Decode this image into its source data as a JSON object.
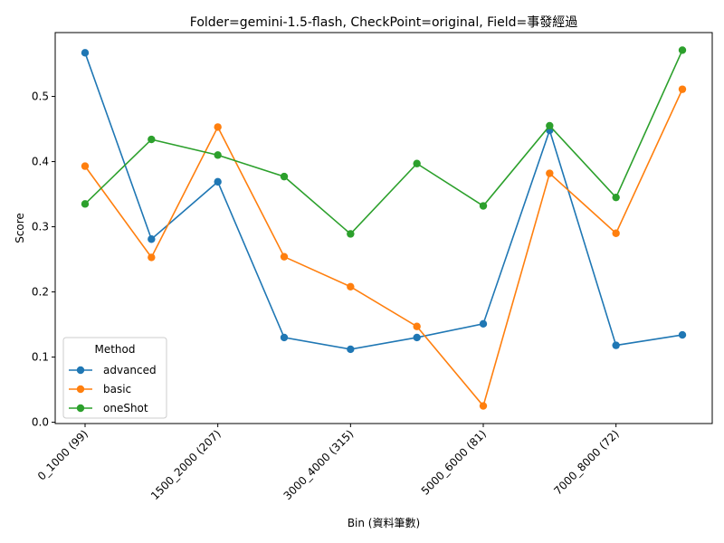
{
  "chart_data": {
    "type": "line",
    "title": "Folder=gemini-1.5-flash, CheckPoint=original, Field=事發經過",
    "xlabel": "Bin (資料筆數)",
    "ylabel": "Score",
    "x": [
      0,
      1,
      2,
      3,
      4,
      5,
      6,
      7,
      8,
      9
    ],
    "xlim": [
      -0.45,
      9.45
    ],
    "ylim": [
      -0.002,
      0.598
    ],
    "xticks": [
      {
        "x": 0,
        "label": "0_1000 (99)"
      },
      {
        "x": 2,
        "label": "1500_2000 (207)"
      },
      {
        "x": 4,
        "label": "3000_4000 (315)"
      },
      {
        "x": 6,
        "label": "5000_6000 (81)"
      },
      {
        "x": 8,
        "label": "7000_8000 (72)"
      }
    ],
    "yticks": [
      0.0,
      0.1,
      0.2,
      0.3,
      0.4,
      0.5
    ],
    "ytick_labels": [
      "0.0",
      "0.1",
      "0.2",
      "0.3",
      "0.4",
      "0.5"
    ],
    "grid": false,
    "legend": {
      "title": "Method",
      "position": "lower-left"
    },
    "series": [
      {
        "name": "advanced",
        "color": "#1f77b4",
        "values": [
          0.567,
          0.281,
          0.369,
          0.13,
          0.112,
          0.13,
          0.151,
          0.448,
          0.118,
          0.134
        ]
      },
      {
        "name": "basic",
        "color": "#ff7f0e",
        "values": [
          0.393,
          0.253,
          0.453,
          0.254,
          0.208,
          0.147,
          0.025,
          0.382,
          0.29,
          0.511
        ]
      },
      {
        "name": "oneShot",
        "color": "#2ca02c",
        "values": [
          0.335,
          0.434,
          0.41,
          0.377,
          0.289,
          0.397,
          0.332,
          0.455,
          0.345,
          0.571
        ]
      }
    ]
  }
}
